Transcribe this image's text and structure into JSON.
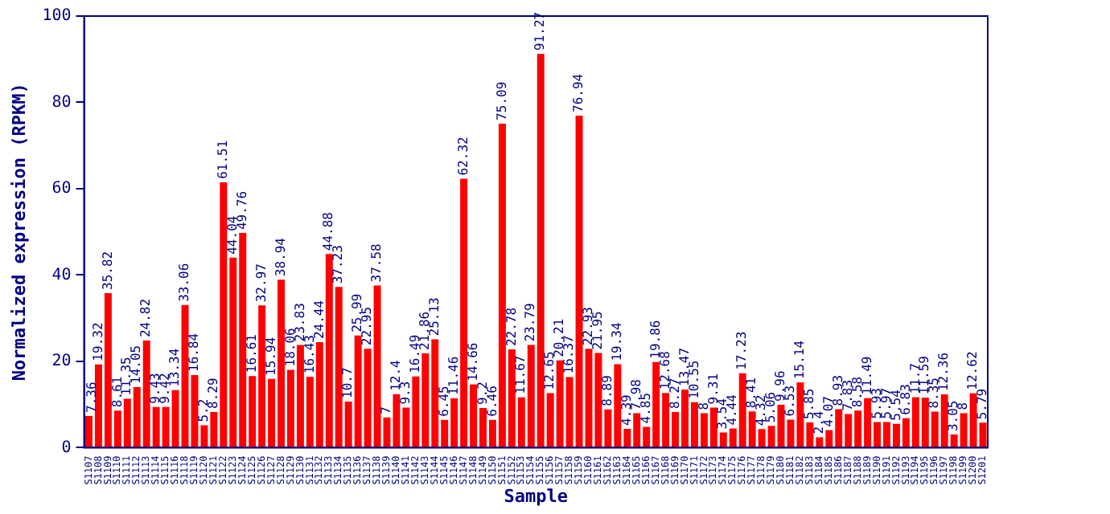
{
  "chart_data": {
    "type": "bar",
    "xlabel": "Sample",
    "ylabel": "Normalized expression (RPKM)",
    "categories": [
      "S1107",
      "S1108",
      "S1109",
      "S1110",
      "S1111",
      "S1112",
      "S1113",
      "S1114",
      "S1115",
      "S1116",
      "S1118",
      "S1119",
      "S1120",
      "S1121",
      "S1122",
      "S1123",
      "S1124",
      "S1125",
      "S1126",
      "S1127",
      "S1128",
      "S1129",
      "S1130",
      "S1131",
      "S1132",
      "S1133",
      "S1134",
      "S1135",
      "S1136",
      "S1137",
      "S1138",
      "S1139",
      "S1140",
      "S1141",
      "S1142",
      "S1143",
      "S1144",
      "S1145",
      "S1146",
      "S1147",
      "S1148",
      "S1149",
      "S1150",
      "S1151",
      "S1152",
      "S1153",
      "S1154",
      "S1155",
      "S1156",
      "S1157",
      "S1158",
      "S1159",
      "S1160",
      "S1161",
      "S1162",
      "S1163",
      "S1164",
      "S1165",
      "S1166",
      "S1167",
      "S1168",
      "S1169",
      "S1170",
      "S1171",
      "S1172",
      "S1173",
      "S1174",
      "S1175",
      "S1176",
      "S1177",
      "S1178",
      "S1179",
      "S1180",
      "S1181",
      "S1182",
      "S1183",
      "S1184",
      "S1185",
      "S1186",
      "S1187",
      "S1188",
      "S1189",
      "S1190",
      "S1191",
      "S1192",
      "S1193",
      "S1194",
      "S1195",
      "S1196",
      "S1197",
      "S1198",
      "S1199",
      "S1200",
      "S1201"
    ],
    "values": [
      7.36,
      19.32,
      35.82,
      8.61,
      11.35,
      14.05,
      24.82,
      9.43,
      9.42,
      13.34,
      33.06,
      16.84,
      5.2,
      8.29,
      61.51,
      44.04,
      49.76,
      16.61,
      32.97,
      15.94,
      38.94,
      18.06,
      23.83,
      16.43,
      24.44,
      44.88,
      37.23,
      10.7,
      25.99,
      22.95,
      37.58,
      7,
      12.4,
      9.3,
      16.49,
      21.86,
      25.13,
      6.45,
      11.46,
      62.32,
      14.66,
      9.2,
      6.46,
      75.09,
      22.78,
      11.67,
      23.79,
      91.27,
      12.65,
      20.21,
      16.37,
      76.94,
      22.93,
      21.95,
      8.89,
      19.34,
      4.39,
      7.98,
      4.85,
      19.86,
      12.68,
      8.27,
      13.47,
      10.55,
      8,
      9.31,
      3.54,
      4.44,
      17.23,
      8.41,
      4.32,
      5.06,
      9.96,
      6.53,
      15.14,
      5.85,
      2.4,
      4.07,
      8.93,
      7.83,
      8.58,
      11.49,
      5.93,
      5.97,
      5.54,
      6.83,
      11.7,
      11.59,
      8.35,
      12.36,
      3.05,
      8,
      12.62,
      5.79
    ],
    "color": "#ff0000",
    "ylim": [
      0,
      100
    ],
    "yticks": [
      0,
      20,
      40,
      60,
      80,
      100
    ],
    "grid": false,
    "legend": false,
    "data_labels": true
  }
}
